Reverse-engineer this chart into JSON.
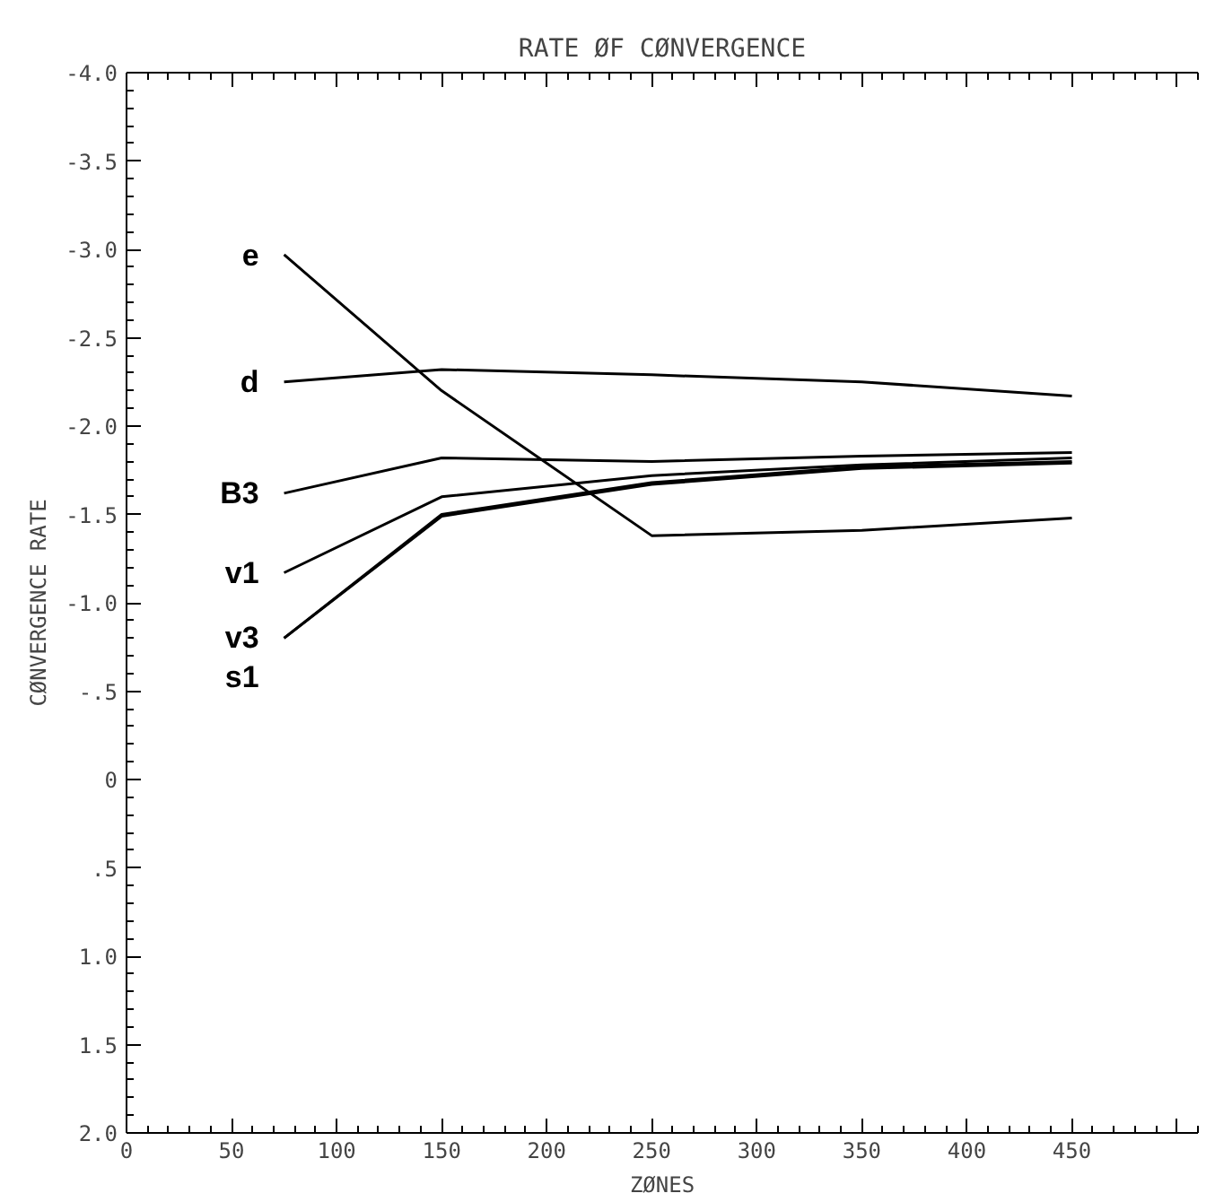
{
  "chart_data": {
    "type": "line",
    "title": "RATE ØF CØNVERGENCE",
    "xlabel": "ZØNES",
    "ylabel": "CØNVERGENCE RATE",
    "x": [
      75,
      150,
      250,
      350,
      450
    ],
    "xlim": [
      0,
      510
    ],
    "xticks": [
      0,
      50,
      100,
      150,
      200,
      250,
      300,
      350,
      400,
      450,
      {
        "value": 500,
        "label": null
      }
    ],
    "ylim": [
      2.0,
      -4.0
    ],
    "yticks": [
      {
        "value": -4.0,
        "label": "-4.0"
      },
      {
        "value": -3.5,
        "label": "-3.5"
      },
      {
        "value": -3.0,
        "label": "-3.0"
      },
      {
        "value": -2.5,
        "label": "-2.5"
      },
      {
        "value": -2.0,
        "label": "-2.0"
      },
      {
        "value": -1.5,
        "label": "-1.5"
      },
      {
        "value": -1.0,
        "label": "-1.0"
      },
      {
        "value": -0.5,
        "label": "-.5"
      },
      {
        "value": 0,
        "label": "0"
      },
      {
        "value": 0.5,
        "label": ".5"
      },
      {
        "value": 1.0,
        "label": "1.0"
      },
      {
        "value": 1.5,
        "label": "1.5"
      },
      {
        "value": 2.0,
        "label": "2.0"
      }
    ],
    "series": [
      {
        "name": "e",
        "color": "#000000",
        "values": [
          -2.97,
          -2.2,
          -1.38,
          -1.41,
          -1.48
        ]
      },
      {
        "name": "d",
        "color": "#000000",
        "values": [
          -2.25,
          -2.32,
          -2.29,
          -2.25,
          -2.17
        ]
      },
      {
        "name": "B3",
        "color": "#000000",
        "values": [
          -1.62,
          -1.82,
          -1.8,
          -1.83,
          -1.85
        ]
      },
      {
        "name": "v1",
        "color": "#000000",
        "values": [
          -1.17,
          -1.6,
          -1.72,
          -1.78,
          -1.82
        ]
      },
      {
        "name": "v3",
        "color": "#000000",
        "values": [
          -0.8,
          -1.5,
          -1.68,
          -1.77,
          -1.8
        ]
      },
      {
        "name": "s1",
        "color": "#000000",
        "values": [
          -0.8,
          -1.49,
          -1.67,
          -1.76,
          -1.79
        ]
      }
    ]
  }
}
